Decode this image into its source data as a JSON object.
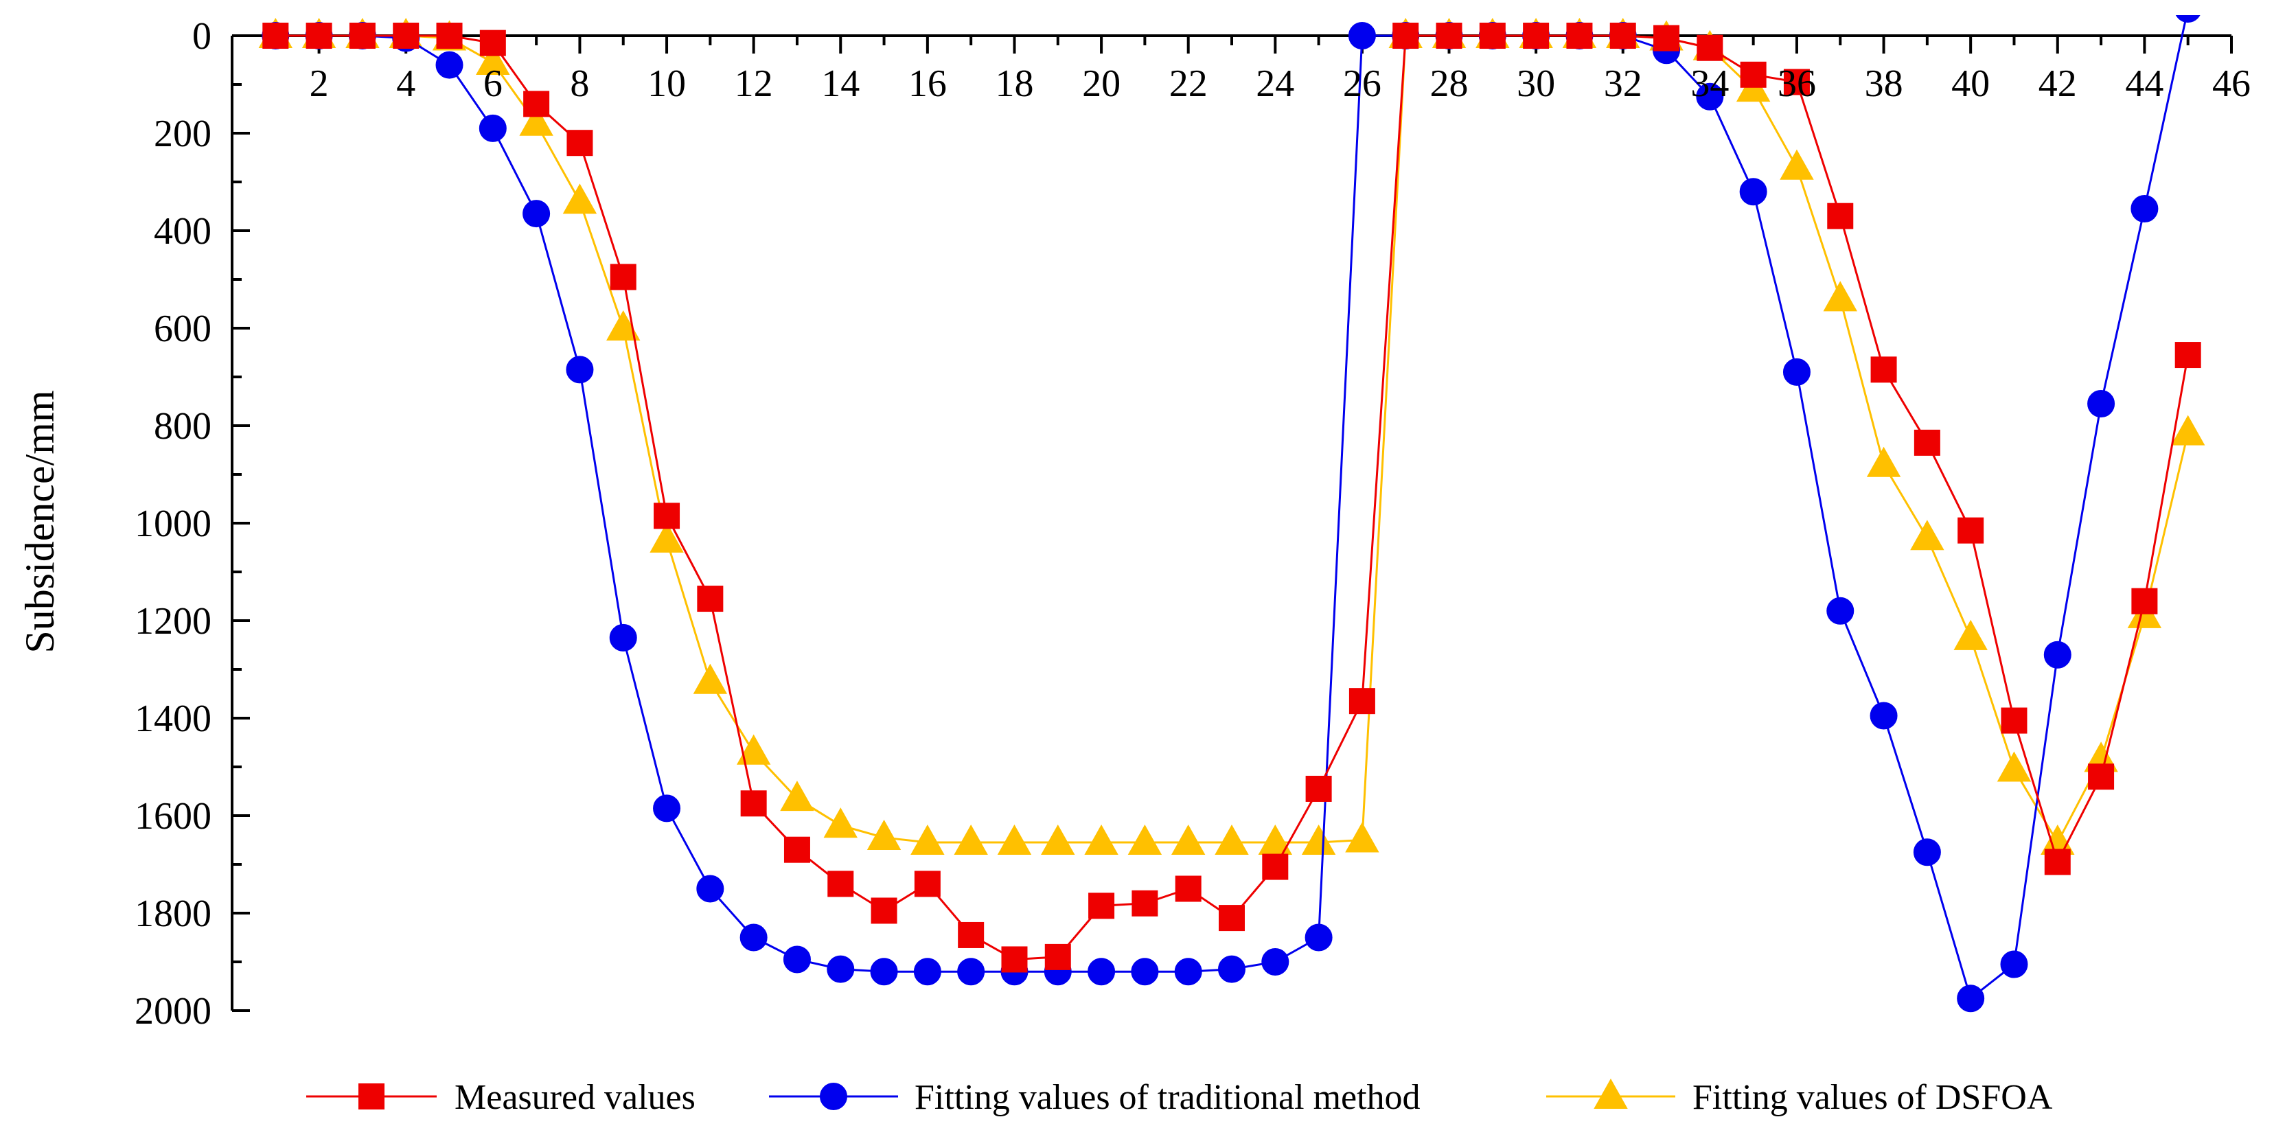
{
  "chart_data": {
    "type": "line",
    "title": "",
    "xlabel": "",
    "ylabel": "Subsidence/mm",
    "xlim": [
      0,
      46
    ],
    "ylim": [
      0,
      2000
    ],
    "y_inverted": true,
    "x_axis_position": "top",
    "x_ticks": [
      2,
      4,
      6,
      8,
      10,
      12,
      14,
      16,
      18,
      20,
      22,
      24,
      26,
      28,
      30,
      32,
      34,
      36,
      38,
      40,
      42,
      44,
      46
    ],
    "y_ticks": [
      0,
      200,
      400,
      600,
      800,
      1000,
      1200,
      1400,
      1600,
      1800,
      2000
    ],
    "legend_position": "bottom",
    "x": [
      1,
      2,
      3,
      4,
      5,
      6,
      7,
      8,
      9,
      10,
      11,
      12,
      13,
      14,
      15,
      16,
      17,
      18,
      19,
      20,
      21,
      22,
      23,
      24,
      25,
      26,
      27,
      28,
      29,
      30,
      31,
      32,
      33,
      34,
      35,
      36,
      37,
      38,
      39,
      40,
      41,
      42,
      43,
      44,
      45
    ],
    "series": [
      {
        "name": "Measured values",
        "color": "#ee0000",
        "marker": "square",
        "values": [
          0,
          0,
          0,
          0,
          0,
          15,
          140,
          220,
          495,
          985,
          1155,
          1575,
          1670,
          1740,
          1795,
          1740,
          1845,
          1895,
          1890,
          1785,
          1780,
          1750,
          1810,
          1705,
          1545,
          1365,
          0,
          0,
          0,
          0,
          0,
          0,
          5,
          25,
          80,
          95,
          370,
          685,
          835,
          1015,
          1405,
          1695,
          1520,
          1160,
          655
        ]
      },
      {
        "name": "Fitting values of traditional method",
        "color": "#0000ee",
        "marker": "circle",
        "values": [
          0,
          0,
          0,
          5,
          60,
          190,
          365,
          685,
          1235,
          1585,
          1750,
          1850,
          1895,
          1915,
          1920,
          1920,
          1920,
          1920,
          1920,
          1920,
          1920,
          1920,
          1915,
          1900,
          1850,
          0,
          0,
          0,
          0,
          0,
          0,
          0,
          30,
          125,
          320,
          690,
          1180,
          1395,
          1675,
          1975,
          1905,
          1270,
          755,
          355,
          -55
        ]
      },
      {
        "name": "Fitting values of DSFOA",
        "color": "#ffc000",
        "marker": "triangle",
        "values": [
          0,
          0,
          0,
          0,
          5,
          55,
          180,
          340,
          600,
          1035,
          1325,
          1470,
          1565,
          1620,
          1645,
          1655,
          1655,
          1655,
          1655,
          1655,
          1655,
          1655,
          1655,
          1655,
          1655,
          1650,
          0,
          0,
          0,
          0,
          0,
          0,
          5,
          25,
          110,
          270,
          540,
          880,
          1030,
          1235,
          1505,
          1655,
          1485,
          1190,
          815
        ]
      }
    ]
  }
}
